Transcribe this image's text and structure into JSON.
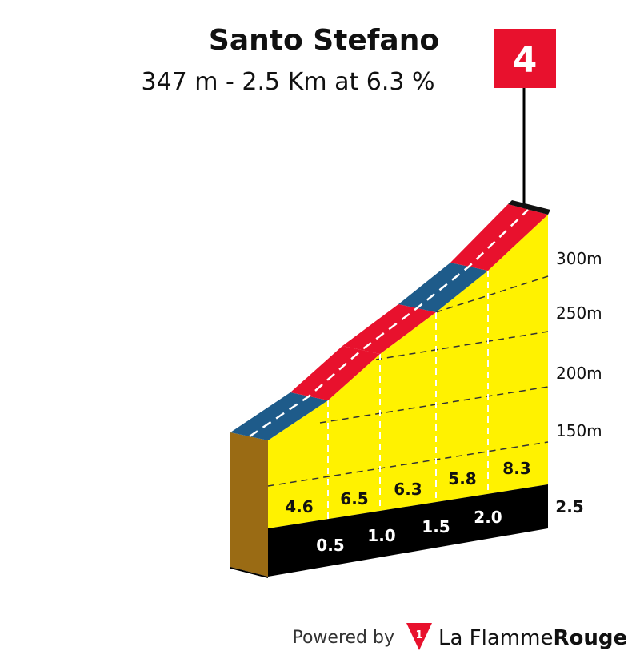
{
  "header": {
    "title": "Santo Stefano",
    "subtitle": "347 m - 2.5 Km at 6.3 %"
  },
  "flag": "4",
  "altitude_labels": [
    "300m",
    "250m",
    "200m",
    "150m"
  ],
  "gradients": [
    "4.6",
    "6.5",
    "6.3",
    "5.8",
    "8.3"
  ],
  "distances": [
    "0.5",
    "1.0",
    "1.5",
    "2.0",
    "2.5"
  ],
  "footer": {
    "powered_by": "Powered by",
    "brand_light": "La Flamme",
    "brand_bold": "Rouge",
    "logo": "1"
  }
}
